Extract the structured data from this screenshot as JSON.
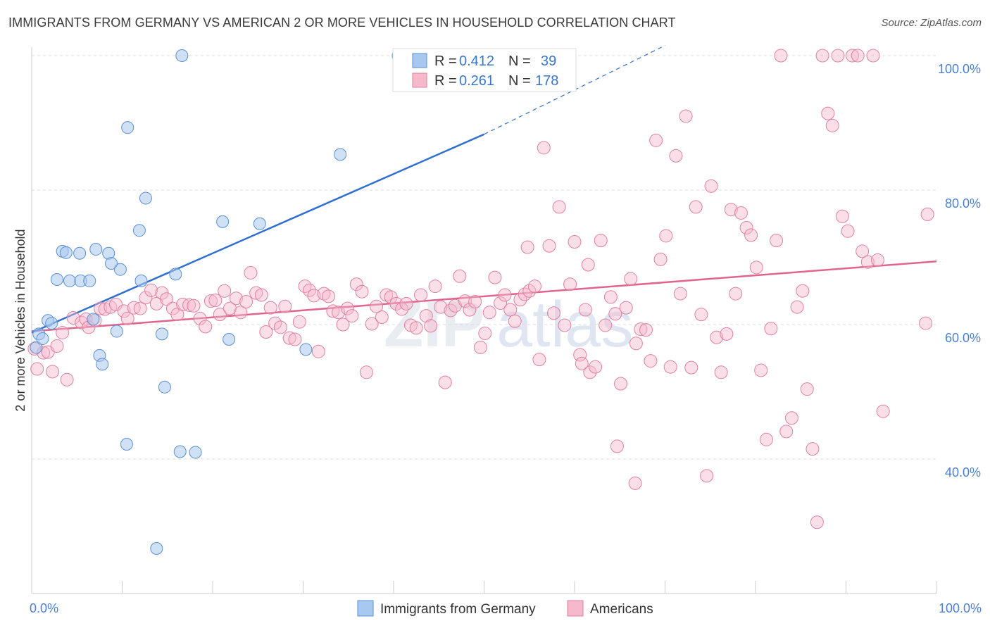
{
  "title": "IMMIGRANTS FROM GERMANY VS AMERICAN 2 OR MORE VEHICLES IN HOUSEHOLD CORRELATION CHART",
  "source": "Source: ZipAtlas.com",
  "watermark": {
    "zip": "ZIP",
    "atlas": "atlas"
  },
  "colors": {
    "blue_fill": "#a9c8ef",
    "blue_stroke": "#5b8fd6",
    "blue_line": "#2f6fcf",
    "pink_fill": "#f6b8cb",
    "pink_stroke": "#e0809f",
    "pink_line": "#e0648f",
    "tick_label": "#4a7fd4",
    "grid": "#dddddd"
  },
  "legend": {
    "rows": [
      {
        "r_label": "R =",
        "r_value": "0.412",
        "n_label": "N =",
        "n_value": "39"
      },
      {
        "r_label": "R =",
        "r_value": "0.261",
        "n_label": "N =",
        "n_value": "178"
      }
    ]
  },
  "bottom_legend": [
    "Immigrants from Germany",
    "Americans"
  ],
  "chart_data": {
    "type": "scatter",
    "title": "IMMIGRANTS FROM GERMANY VS AMERICAN 2 OR MORE VEHICLES IN HOUSEHOLD CORRELATION CHART",
    "xlabel": "",
    "ylabel": "2 or more Vehicles in Household",
    "xlim": [
      0,
      100
    ],
    "ylim": [
      20,
      100
    ],
    "x_tick_labels": [
      "0.0%",
      "100.0%"
    ],
    "y_ticks": [
      40,
      60,
      80,
      100
    ],
    "y_tick_labels": [
      "40.0%",
      "60.0%",
      "80.0%",
      "100.0%"
    ],
    "grid": true,
    "legend_position": "top-center",
    "series": [
      {
        "name": "Immigrants from Germany",
        "r": 0.412,
        "n": 39,
        "trend": {
          "x0": 0,
          "y0": 58.8,
          "x1": 50,
          "y1": 88.3,
          "dashed_to_x": 70,
          "dashed_to_y": 101.5
        },
        "points": [
          [
            0.5,
            56.6
          ],
          [
            0.8,
            58.6
          ],
          [
            1.2,
            57.9
          ],
          [
            1.8,
            60.6
          ],
          [
            2.2,
            60.2
          ],
          [
            2.8,
            66.7
          ],
          [
            3.4,
            70.9
          ],
          [
            3.8,
            70.7
          ],
          [
            4.2,
            66.5
          ],
          [
            5.3,
            70.6
          ],
          [
            5.4,
            66.5
          ],
          [
            6.4,
            66.5
          ],
          [
            6.8,
            60.8
          ],
          [
            7.1,
            71.2
          ],
          [
            7.5,
            55.4
          ],
          [
            7.8,
            54.1
          ],
          [
            8.5,
            70.6
          ],
          [
            8.8,
            69.1
          ],
          [
            9.4,
            59.0
          ],
          [
            9.8,
            68.2
          ],
          [
            10.5,
            42.2
          ],
          [
            10.6,
            89.3
          ],
          [
            11.9,
            74.0
          ],
          [
            12.1,
            66.5
          ],
          [
            12.6,
            78.8
          ],
          [
            13.8,
            26.7
          ],
          [
            14.4,
            58.6
          ],
          [
            14.7,
            50.7
          ],
          [
            15.9,
            67.5
          ],
          [
            16.4,
            41.1
          ],
          [
            16.6,
            100.0
          ],
          [
            18.1,
            41.0
          ],
          [
            21.1,
            75.3
          ],
          [
            21.8,
            57.8
          ],
          [
            25.2,
            75.0
          ],
          [
            30.3,
            56.3
          ],
          [
            34.1,
            85.3
          ],
          [
            40.5,
            100.0
          ],
          [
            46.8,
            100.0
          ]
        ]
      },
      {
        "name": "Americans",
        "r": 0.261,
        "n": 178,
        "trend": {
          "x0": 0,
          "y0": 59.0,
          "x1": 100,
          "y1": 69.4
        },
        "points": [
          [
            0.3,
            56.4
          ],
          [
            0.6,
            53.4
          ],
          [
            1.3,
            55.8
          ],
          [
            1.8,
            55.9
          ],
          [
            2.3,
            53.0
          ],
          [
            2.8,
            56.8
          ],
          [
            3.4,
            58.8
          ],
          [
            3.9,
            51.8
          ],
          [
            4.6,
            61.0
          ],
          [
            5.5,
            60.3
          ],
          [
            6.0,
            60.8
          ],
          [
            6.3,
            59.6
          ],
          [
            7.0,
            60.6
          ],
          [
            7.6,
            62.4
          ],
          [
            8.1,
            62.3
          ],
          [
            8.7,
            62.6
          ],
          [
            9.3,
            63.0
          ],
          [
            10.2,
            62.0
          ],
          [
            10.6,
            60.9
          ],
          [
            11.3,
            62.5
          ],
          [
            12.0,
            62.4
          ],
          [
            12.6,
            64.0
          ],
          [
            13.2,
            65.1
          ],
          [
            13.8,
            63.1
          ],
          [
            14.4,
            64.7
          ],
          [
            14.9,
            63.8
          ],
          [
            15.6,
            62.4
          ],
          [
            16.1,
            61.5
          ],
          [
            16.7,
            63.0
          ],
          [
            17.4,
            62.9
          ],
          [
            17.9,
            62.8
          ],
          [
            18.6,
            60.9
          ],
          [
            19.2,
            59.7
          ],
          [
            19.8,
            63.5
          ],
          [
            20.3,
            63.6
          ],
          [
            20.8,
            61.5
          ],
          [
            21.3,
            65.0
          ],
          [
            21.9,
            62.4
          ],
          [
            22.6,
            63.9
          ],
          [
            23.1,
            61.8
          ],
          [
            23.7,
            63.4
          ],
          [
            24.2,
            67.7
          ],
          [
            24.8,
            64.7
          ],
          [
            25.4,
            64.4
          ],
          [
            25.9,
            58.9
          ],
          [
            26.4,
            62.5
          ],
          [
            26.9,
            60.2
          ],
          [
            27.5,
            59.6
          ],
          [
            28.0,
            62.7
          ],
          [
            28.5,
            58.0
          ],
          [
            29.1,
            57.8
          ],
          [
            29.6,
            60.4
          ],
          [
            30.2,
            65.7
          ],
          [
            30.7,
            65.1
          ],
          [
            31.2,
            64.3
          ],
          [
            31.7,
            56.0
          ],
          [
            32.3,
            64.6
          ],
          [
            32.8,
            64.2
          ],
          [
            33.3,
            62.0
          ],
          [
            33.9,
            61.8
          ],
          [
            34.4,
            60.0
          ],
          [
            34.9,
            62.4
          ],
          [
            35.4,
            61.3
          ],
          [
            35.9,
            66.0
          ],
          [
            36.5,
            64.9
          ],
          [
            37.0,
            52.9
          ],
          [
            37.6,
            60.1
          ],
          [
            38.1,
            62.7
          ],
          [
            38.7,
            61.1
          ],
          [
            39.2,
            64.4
          ],
          [
            39.7,
            64.1
          ],
          [
            40.3,
            63.1
          ],
          [
            40.9,
            62.3
          ],
          [
            41.4,
            63.1
          ],
          [
            41.9,
            59.9
          ],
          [
            42.5,
            59.5
          ],
          [
            43.0,
            64.4
          ],
          [
            43.6,
            61.3
          ],
          [
            44.1,
            59.8
          ],
          [
            44.6,
            65.7
          ],
          [
            45.2,
            62.6
          ],
          [
            45.7,
            51.4
          ],
          [
            46.3,
            62.1
          ],
          [
            46.8,
            62.8
          ],
          [
            47.3,
            67.2
          ],
          [
            47.9,
            63.5
          ],
          [
            48.4,
            62.2
          ],
          [
            49.0,
            63.4
          ],
          [
            49.6,
            56.6
          ],
          [
            50.1,
            58.7
          ],
          [
            50.6,
            61.8
          ],
          [
            51.2,
            67.0
          ],
          [
            51.8,
            63.2
          ],
          [
            52.3,
            64.4
          ],
          [
            52.9,
            62.2
          ],
          [
            53.4,
            60.5
          ],
          [
            54.0,
            63.7
          ],
          [
            54.5,
            64.5
          ],
          [
            55.0,
            65.0
          ],
          [
            55.6,
            65.7
          ],
          [
            56.1,
            54.8
          ],
          [
            56.6,
            86.3
          ],
          [
            57.2,
            71.7
          ],
          [
            57.7,
            61.7
          ],
          [
            58.3,
            77.5
          ],
          [
            58.9,
            59.9
          ],
          [
            59.5,
            66.0
          ],
          [
            60.0,
            72.3
          ],
          [
            60.6,
            55.5
          ],
          [
            61.2,
            62.2
          ],
          [
            61.7,
            52.9
          ],
          [
            62.3,
            53.7
          ],
          [
            62.9,
            72.5
          ],
          [
            63.4,
            59.9
          ],
          [
            64.0,
            64.1
          ],
          [
            64.5,
            61.6
          ],
          [
            65.1,
            51.2
          ],
          [
            65.7,
            62.5
          ],
          [
            66.2,
            66.8
          ],
          [
            66.8,
            57.2
          ],
          [
            67.3,
            59.3
          ],
          [
            67.9,
            59.2
          ],
          [
            68.4,
            54.6
          ],
          [
            69.0,
            87.4
          ],
          [
            69.5,
            69.7
          ],
          [
            70.1,
            73.2
          ],
          [
            70.6,
            53.7
          ],
          [
            71.2,
            85.1
          ],
          [
            71.7,
            64.6
          ],
          [
            72.3,
            91.0
          ],
          [
            72.9,
            53.6
          ],
          [
            73.4,
            77.5
          ],
          [
            74.0,
            61.5
          ],
          [
            74.6,
            37.5
          ],
          [
            75.1,
            80.6
          ],
          [
            75.7,
            58.1
          ],
          [
            76.2,
            52.9
          ],
          [
            76.8,
            58.6
          ],
          [
            77.3,
            77.1
          ],
          [
            77.8,
            64.6
          ],
          [
            78.4,
            76.6
          ],
          [
            79.0,
            74.4
          ],
          [
            79.5,
            73.3
          ],
          [
            80.1,
            68.5
          ],
          [
            80.6,
            53.2
          ],
          [
            81.2,
            42.9
          ],
          [
            81.7,
            59.4
          ],
          [
            82.3,
            72.5
          ],
          [
            82.8,
            100.0
          ],
          [
            83.4,
            44.1
          ],
          [
            84.0,
            46.1
          ],
          [
            84.6,
            62.6
          ],
          [
            85.2,
            65.0
          ],
          [
            85.7,
            50.4
          ],
          [
            86.3,
            41.5
          ],
          [
            86.8,
            30.6
          ],
          [
            87.4,
            100.0
          ],
          [
            88.0,
            91.4
          ],
          [
            88.5,
            89.6
          ],
          [
            89.1,
            100.0
          ],
          [
            89.6,
            76.1
          ],
          [
            90.2,
            73.9
          ],
          [
            90.7,
            100.0
          ],
          [
            91.3,
            100.0
          ],
          [
            91.8,
            70.9
          ],
          [
            92.4,
            69.3
          ],
          [
            93.0,
            100.0
          ],
          [
            93.5,
            69.6
          ],
          [
            94.1,
            47.1
          ],
          [
            60.8,
            54.2
          ],
          [
            61.5,
            68.9
          ],
          [
            54.8,
            71.5
          ],
          [
            64.7,
            41.9
          ],
          [
            66.7,
            36.4
          ],
          [
            99.0,
            76.4
          ],
          [
            98.8,
            60.2
          ]
        ]
      }
    ]
  }
}
